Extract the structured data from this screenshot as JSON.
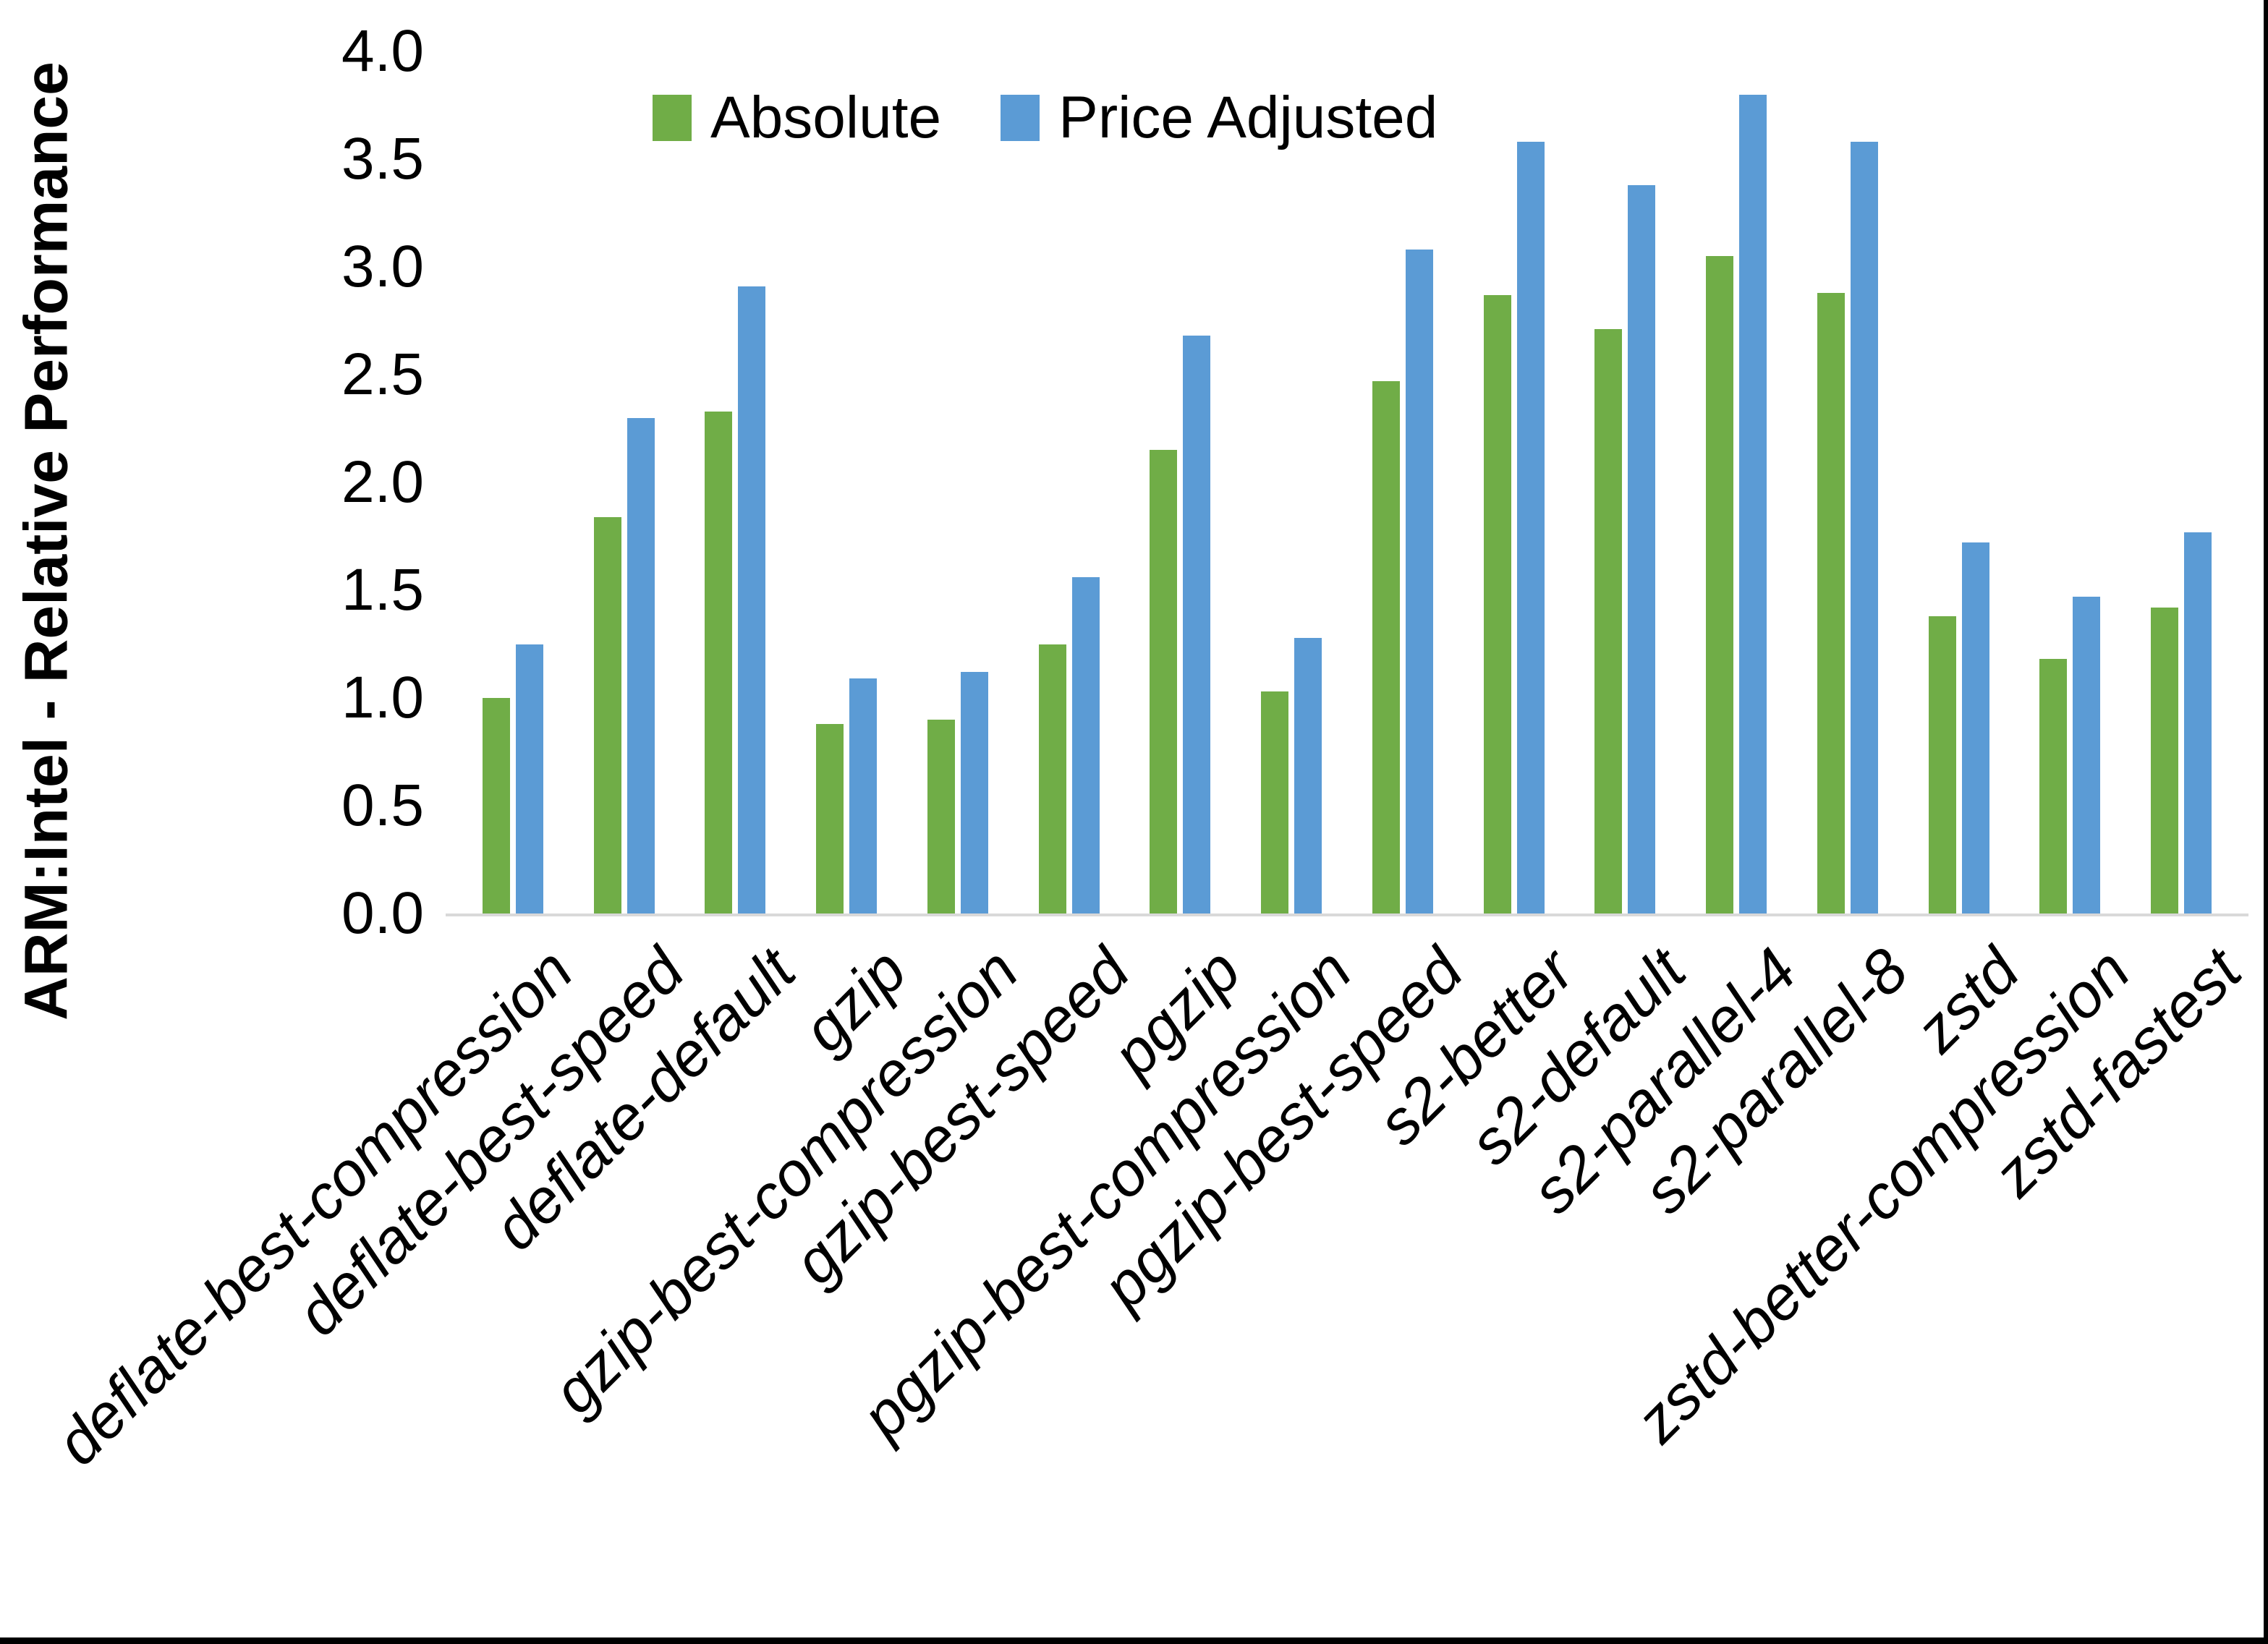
{
  "figure": {
    "background": "#FFFFFF",
    "frame_color": "#000000"
  },
  "chart_data": {
    "type": "bar",
    "title": "",
    "xlabel": "",
    "ylabel": "ARM:Intel - Relative Performance",
    "ylim": [
      0.0,
      4.0
    ],
    "ytick_step": 0.5,
    "ytick_labels": [
      "0.0",
      "0.5",
      "1.0",
      "1.5",
      "2.0",
      "2.5",
      "3.0",
      "3.5",
      "4.0"
    ],
    "grid": false,
    "legend_position": "top-center-inside",
    "axis_line_color": "#D9D9D9",
    "text_color": "#000000",
    "categories": [
      "deflate-best-compression",
      "deflate-best-speed",
      "deflate-default",
      "gzip",
      "gzip-best-compression",
      "gzip-best-speed",
      "pgzip",
      "pgzip-best-compression",
      "pgzip-best-speed",
      "s2-better",
      "s2-default",
      "s2-parallel-4",
      "s2-parallel-8",
      "zstd",
      "zstd-better-compression",
      "zstd-fastest"
    ],
    "series": [
      {
        "name": "Absolute",
        "color": "#70AD47",
        "values": [
          1.0,
          1.84,
          2.33,
          0.88,
          0.9,
          1.25,
          2.15,
          1.03,
          2.47,
          2.87,
          2.71,
          3.05,
          2.88,
          1.38,
          1.18,
          1.42
        ]
      },
      {
        "name": "Price Adjusted",
        "color": "#5B9BD5",
        "values": [
          1.25,
          2.3,
          2.91,
          1.09,
          1.12,
          1.56,
          2.68,
          1.28,
          3.08,
          3.58,
          3.38,
          3.8,
          3.58,
          1.72,
          1.47,
          1.77
        ]
      }
    ]
  }
}
